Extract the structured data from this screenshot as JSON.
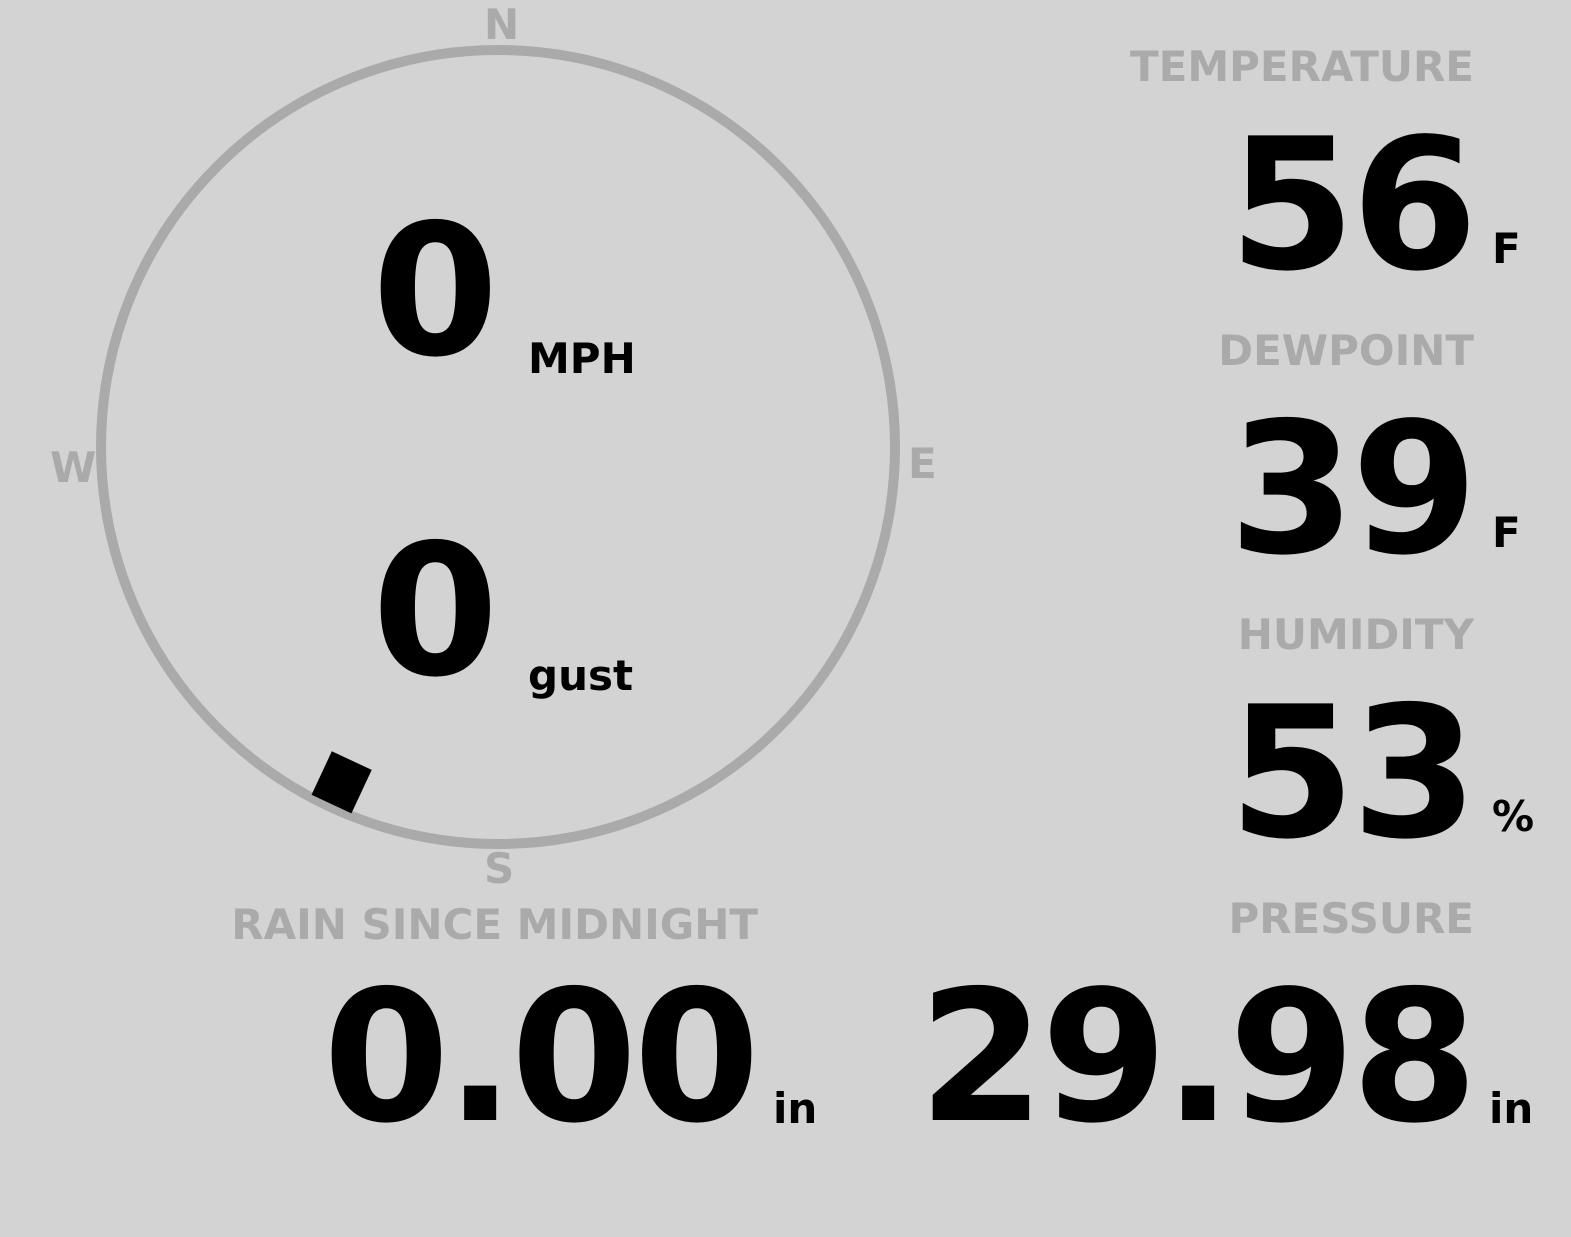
{
  "compass": {
    "n": "N",
    "e": "E",
    "s": "S",
    "w": "W",
    "wind_direction_deg": 205,
    "ring_color": "#aaaaaa",
    "marker_color": "#000000"
  },
  "wind": {
    "speed": "0",
    "speed_unit": "MPH",
    "gust": "0",
    "gust_unit": "gust"
  },
  "rain": {
    "label": "RAIN SINCE MIDNIGHT",
    "value": "0.00",
    "unit": "in"
  },
  "temperature": {
    "label": "TEMPERATURE",
    "value": "56",
    "unit": "F"
  },
  "dewpoint": {
    "label": "DEWPOINT",
    "value": "39",
    "unit": "F"
  },
  "humidity": {
    "label": "HUMIDITY",
    "value": "53",
    "unit": "%"
  },
  "pressure": {
    "label": "PRESSURE",
    "value": "29.98",
    "unit": "in"
  },
  "colors": {
    "background": "#d3d3d3",
    "label": "#aaaaaa",
    "value": "#000000"
  }
}
